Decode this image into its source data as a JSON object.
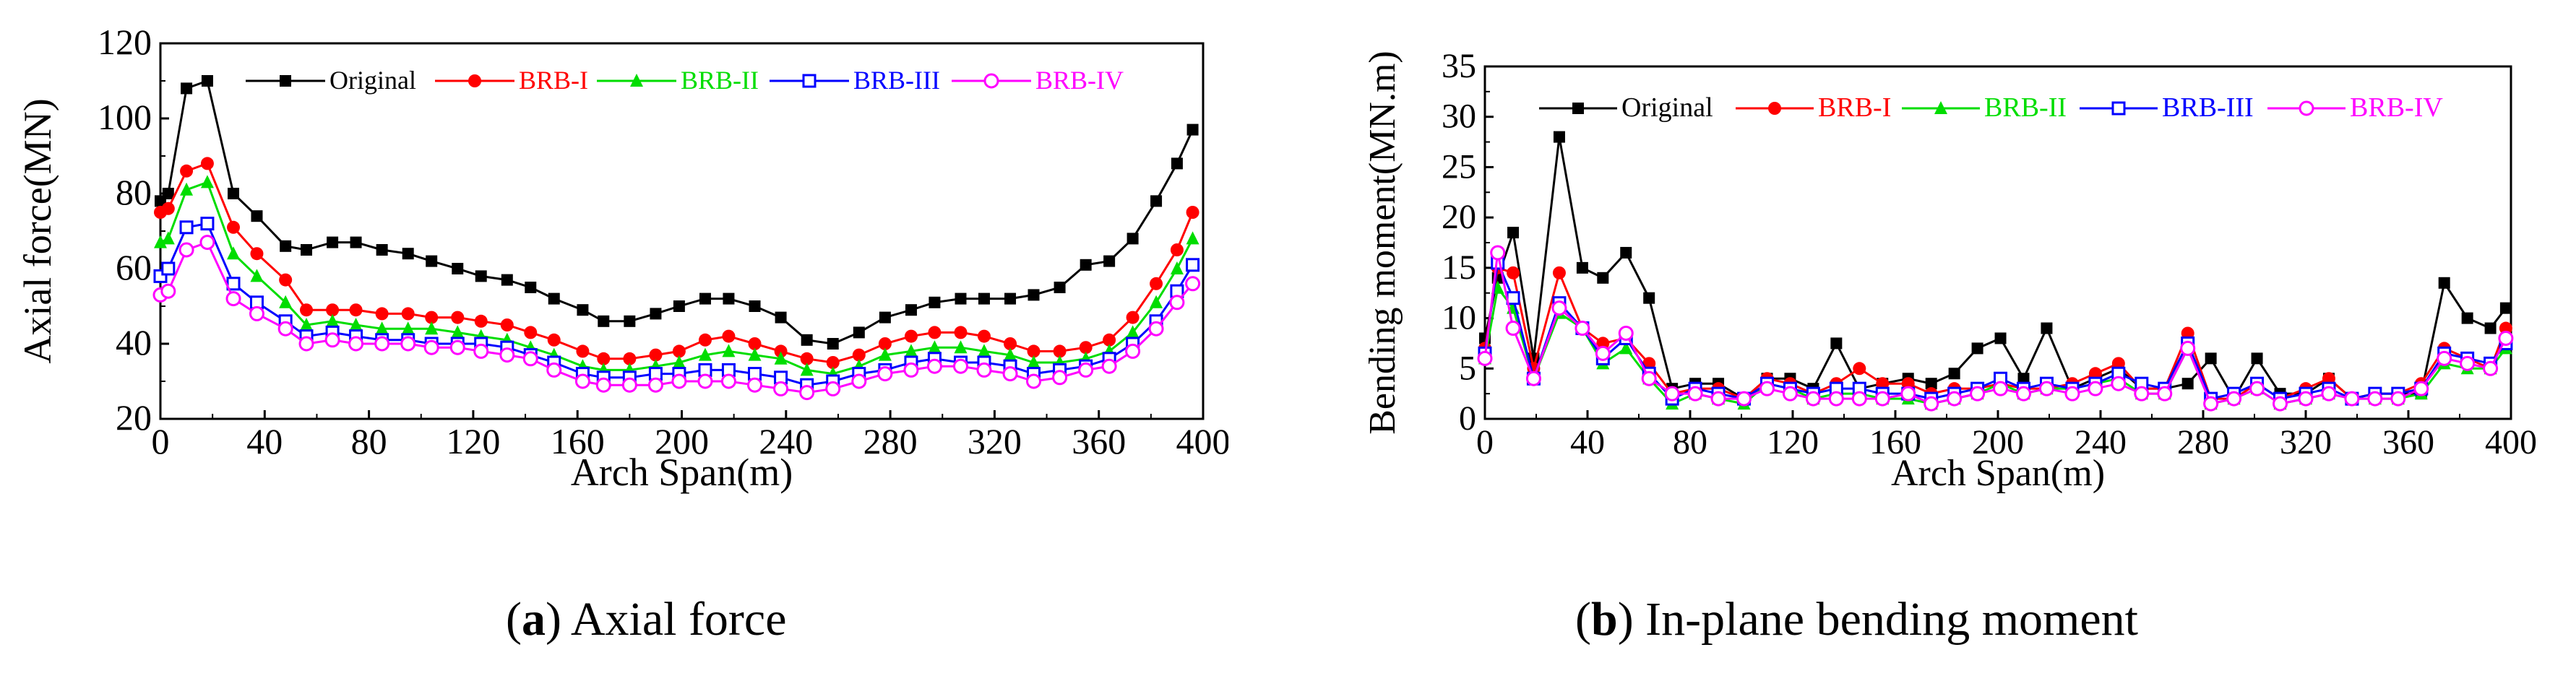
{
  "captions": [
    {
      "letter": "a",
      "text": ") Axial force",
      "open": "("
    },
    {
      "letter": "b",
      "text": ") In-plane bending moment",
      "open": "("
    }
  ],
  "chart_data": [
    {
      "type": "line",
      "title": "",
      "xlabel": "Arch Span(m)",
      "ylabel": "Axial force(MN)",
      "xlim": [
        0,
        400
      ],
      "ylim": [
        20,
        120
      ],
      "xticks": [
        0,
        40,
        80,
        120,
        160,
        200,
        240,
        280,
        320,
        360,
        400
      ],
      "yticks": [
        20,
        40,
        60,
        80,
        100,
        120
      ],
      "legend_position": "top",
      "x": [
        0,
        3,
        10,
        18,
        28,
        37,
        48,
        56,
        66,
        75,
        85,
        95,
        104,
        114,
        123,
        133,
        142,
        151,
        162,
        170,
        180,
        190,
        199,
        209,
        218,
        228,
        238,
        248,
        258,
        268,
        278,
        288,
        297,
        307,
        316,
        326,
        335,
        345,
        355,
        364,
        373,
        382,
        390,
        396
      ],
      "series": [
        {
          "name": "Original",
          "color": "#000000",
          "marker": "square",
          "values": [
            78,
            80,
            108,
            110,
            80,
            74,
            66,
            65,
            67,
            67,
            65,
            64,
            62,
            60,
            58,
            57,
            55,
            52,
            49,
            46,
            46,
            48,
            50,
            52,
            52,
            50,
            47,
            41,
            40,
            43,
            47,
            49,
            51,
            52,
            52,
            52,
            53,
            55,
            61,
            62,
            68,
            78,
            88,
            97
          ]
        },
        {
          "name": "BRB-I",
          "color": "#ff0000",
          "marker": "circle",
          "values": [
            75,
            76,
            86,
            88,
            71,
            64,
            57,
            49,
            49,
            49,
            48,
            48,
            47,
            47,
            46,
            45,
            43,
            41,
            38,
            36,
            36,
            37,
            38,
            41,
            42,
            40,
            38,
            36,
            35,
            37,
            40,
            42,
            43,
            43,
            42,
            40,
            38,
            38,
            39,
            41,
            47,
            56,
            65,
            75
          ]
        },
        {
          "name": "BRB-II",
          "color": "#00dd00",
          "marker": "triangle",
          "values": [
            67,
            68,
            81,
            83,
            64,
            58,
            51,
            45,
            46,
            45,
            44,
            44,
            44,
            43,
            42,
            41,
            39,
            37,
            34,
            33,
            33,
            34,
            35,
            37,
            38,
            37,
            36,
            33,
            32,
            34,
            37,
            38,
            39,
            39,
            38,
            37,
            35,
            35,
            36,
            38,
            43,
            51,
            60,
            68
          ]
        },
        {
          "name": "BRB-III",
          "color": "#0000ff",
          "marker": "square-open",
          "values": [
            58,
            60,
            71,
            72,
            56,
            51,
            46,
            42,
            43,
            42,
            41,
            41,
            40,
            40,
            40,
            39,
            37,
            35,
            32,
            31,
            31,
            32,
            32,
            33,
            33,
            32,
            31,
            29,
            30,
            32,
            33,
            35,
            36,
            35,
            35,
            34,
            32,
            33,
            34,
            36,
            40,
            46,
            54,
            61
          ]
        },
        {
          "name": "BRB-IV",
          "color": "#ff00ff",
          "marker": "circle-open",
          "values": [
            53,
            54,
            65,
            67,
            52,
            48,
            44,
            40,
            41,
            40,
            40,
            40,
            39,
            39,
            38,
            37,
            36,
            33,
            30,
            29,
            29,
            29,
            30,
            30,
            30,
            29,
            28,
            27,
            28,
            30,
            32,
            33,
            34,
            34,
            33,
            32,
            30,
            31,
            33,
            34,
            38,
            44,
            51,
            56
          ]
        }
      ]
    },
    {
      "type": "line",
      "title": "",
      "xlabel": "Arch Span(m)",
      "ylabel": "Bending moment(MN.m)",
      "xlim": [
        0,
        400
      ],
      "ylim": [
        0,
        35
      ],
      "xticks": [
        0,
        40,
        80,
        120,
        160,
        200,
        240,
        280,
        320,
        360,
        400
      ],
      "yticks": [
        0,
        5,
        10,
        15,
        20,
        25,
        30,
        35
      ],
      "legend_position": "top",
      "x": [
        0,
        5,
        11,
        19,
        29,
        38,
        46,
        55,
        64,
        73,
        82,
        91,
        101,
        110,
        119,
        128,
        137,
        146,
        155,
        165,
        174,
        183,
        192,
        201,
        210,
        219,
        229,
        238,
        247,
        256,
        265,
        274,
        283,
        292,
        301,
        310,
        320,
        329,
        338,
        347,
        356,
        365,
        374,
        383,
        392,
        398
      ],
      "series": [
        {
          "name": "Original",
          "color": "#000000",
          "marker": "square",
          "values": [
            8,
            14,
            18.5,
            6,
            28,
            15,
            14,
            16.5,
            12,
            3,
            3.5,
            3.5,
            2,
            4,
            4,
            3,
            7.5,
            3,
            3.5,
            4,
            3.5,
            4.5,
            7,
            8,
            4,
            9,
            3,
            4,
            5,
            3,
            3,
            3.5,
            6,
            2,
            6,
            2.5,
            2.5,
            4,
            2,
            2.5,
            2.5,
            2.5,
            13.5,
            10,
            9,
            11
          ]
        },
        {
          "name": "BRB-I",
          "color": "#ff0000",
          "marker": "circle",
          "values": [
            7,
            15,
            14.5,
            5,
            14.5,
            9,
            7.5,
            8,
            5.5,
            2.5,
            3,
            3,
            2,
            4,
            3.5,
            2.5,
            3.5,
            5,
            3.5,
            3.5,
            2.5,
            3,
            3,
            3.5,
            3,
            3,
            3.5,
            4.5,
            5.5,
            3,
            3,
            8.5,
            2,
            2,
            3.5,
            2,
            3,
            4,
            2,
            2.5,
            2.5,
            3.5,
            7,
            6,
            5,
            9
          ]
        },
        {
          "name": "BRB-II",
          "color": "#00dd00",
          "marker": "triangle",
          "values": [
            6,
            13,
            11,
            4,
            10.5,
            9,
            5.5,
            7,
            4,
            1.5,
            2.5,
            2,
            1.5,
            3.5,
            3,
            2,
            2.5,
            2.5,
            2,
            2,
            1.5,
            2,
            2.5,
            3.5,
            2.5,
            3,
            3,
            3.5,
            4,
            2.5,
            2.5,
            7,
            1.5,
            2,
            3,
            1.5,
            2,
            2.5,
            2,
            2,
            2,
            2.5,
            5.5,
            5,
            5,
            7
          ]
        },
        {
          "name": "BRB-III",
          "color": "#0000ff",
          "marker": "square-open",
          "values": [
            6.5,
            15.5,
            12,
            4,
            11.5,
            9,
            6,
            8,
            4.5,
            2,
            3,
            2.5,
            2,
            3.5,
            3,
            2.5,
            3,
            3,
            2.5,
            2.5,
            2,
            2.5,
            3,
            4,
            3,
            3.5,
            3,
            3.5,
            4.5,
            3.5,
            3,
            7.5,
            2,
            2.5,
            3.5,
            2,
            2.5,
            3,
            2,
            2.5,
            2.5,
            3,
            6.5,
            6,
            5.5,
            7.5
          ]
        },
        {
          "name": "BRB-IV",
          "color": "#ff00ff",
          "marker": "circle-open",
          "values": [
            6,
            16.5,
            9,
            4,
            11,
            9,
            6.5,
            8.5,
            4,
            2.5,
            2.5,
            2,
            2,
            3,
            2.5,
            2,
            2,
            2,
            2,
            2.5,
            1.5,
            2,
            2.5,
            3,
            2.5,
            3,
            2.5,
            3,
            3.5,
            2.5,
            2.5,
            7,
            1.5,
            2,
            3,
            1.5,
            2,
            2.5,
            2,
            2,
            2,
            3,
            6,
            5.5,
            5,
            8
          ]
        }
      ]
    }
  ]
}
